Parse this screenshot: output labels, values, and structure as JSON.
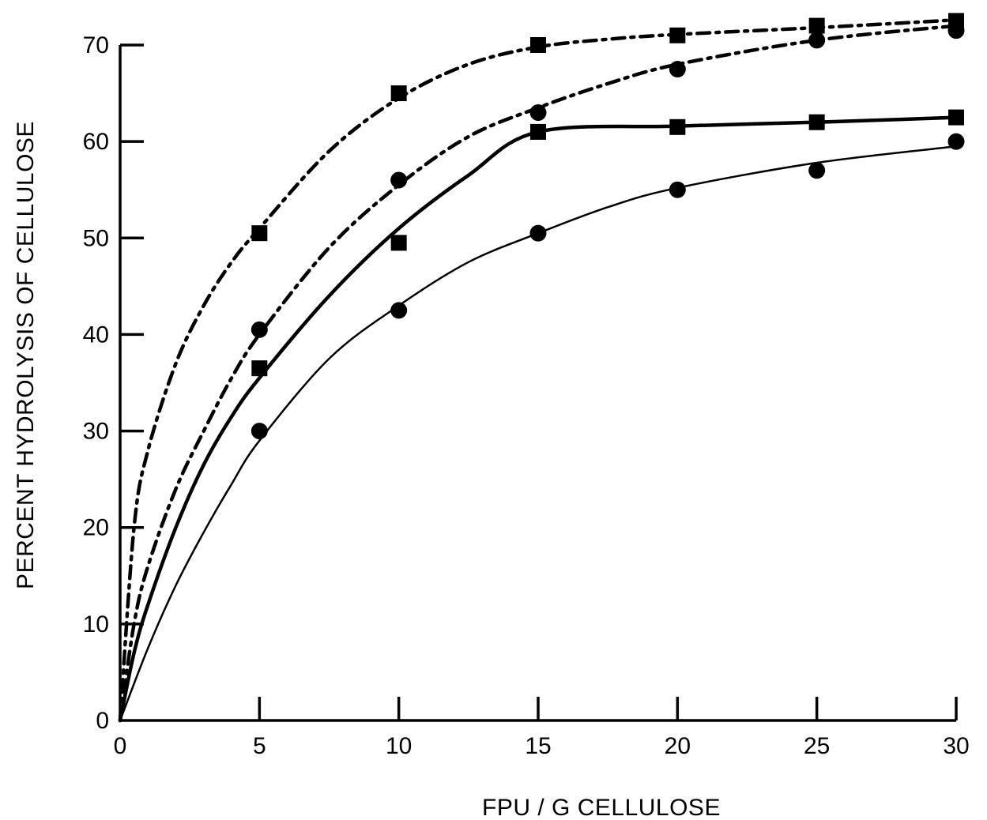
{
  "chart_data": {
    "type": "line",
    "title": "",
    "xlabel": "FPU / G CELLULOSE",
    "ylabel": "PERCENT HYDROLYSIS OF CELLULOSE",
    "xlim": [
      0,
      30
    ],
    "ylim": [
      0,
      70
    ],
    "x_ticks": [
      0,
      5,
      10,
      15,
      20,
      25,
      30
    ],
    "y_ticks": [
      0,
      10,
      20,
      30,
      40,
      50,
      60,
      70
    ],
    "grid": false,
    "legend": "none",
    "series": [
      {
        "marker": "square",
        "line_style": "dash-dot",
        "points": [
          [
            0,
            0
          ],
          [
            5,
            50.5
          ],
          [
            10,
            65
          ],
          [
            15,
            70
          ],
          [
            20,
            71
          ],
          [
            25,
            72
          ],
          [
            30,
            72.5
          ]
        ],
        "curve": [
          [
            0,
            0
          ],
          [
            0.5,
            20
          ],
          [
            1,
            28
          ],
          [
            2,
            37
          ],
          [
            3,
            43
          ],
          [
            4,
            47.5
          ],
          [
            5,
            51
          ],
          [
            7.5,
            59
          ],
          [
            10,
            64.5
          ],
          [
            12.5,
            68
          ],
          [
            15,
            69.8
          ],
          [
            17.5,
            70.6
          ],
          [
            20,
            71.1
          ],
          [
            25,
            71.8
          ],
          [
            30,
            72.6
          ]
        ]
      },
      {
        "marker": "circle",
        "line_style": "dash-dot",
        "points": [
          [
            0,
            0
          ],
          [
            5,
            40.5
          ],
          [
            10,
            56
          ],
          [
            15,
            63
          ],
          [
            20,
            67.5
          ],
          [
            25,
            70.5
          ],
          [
            30,
            71.5
          ]
        ],
        "curve": [
          [
            0,
            0
          ],
          [
            0.5,
            10
          ],
          [
            1,
            16
          ],
          [
            2,
            24
          ],
          [
            3,
            30
          ],
          [
            4,
            35.5
          ],
          [
            5,
            40
          ],
          [
            7.5,
            49
          ],
          [
            10,
            55.5
          ],
          [
            12.5,
            60.5
          ],
          [
            15,
            63.5
          ],
          [
            17.5,
            66
          ],
          [
            20,
            68
          ],
          [
            25,
            70.5
          ],
          [
            30,
            72
          ]
        ]
      },
      {
        "marker": "square",
        "line_style": "solid-thick",
        "points": [
          [
            0,
            0
          ],
          [
            5,
            36.5
          ],
          [
            10,
            49.5
          ],
          [
            15,
            61
          ],
          [
            20,
            61.5
          ],
          [
            25,
            62
          ],
          [
            30,
            62.5
          ]
        ],
        "curve": [
          [
            0,
            0
          ],
          [
            0.5,
            7
          ],
          [
            1,
            12
          ],
          [
            2,
            20
          ],
          [
            3,
            26.5
          ],
          [
            4,
            31.5
          ],
          [
            5,
            35.5
          ],
          [
            7.5,
            44
          ],
          [
            10,
            51
          ],
          [
            12.5,
            56.5
          ],
          [
            15,
            61
          ],
          [
            20,
            61.6
          ],
          [
            25,
            62
          ],
          [
            30,
            62.5
          ]
        ]
      },
      {
        "marker": "circle",
        "line_style": "solid-thin",
        "points": [
          [
            0,
            0
          ],
          [
            5,
            30
          ],
          [
            10,
            42.5
          ],
          [
            15,
            50.5
          ],
          [
            20,
            55
          ],
          [
            25,
            57
          ],
          [
            30,
            60
          ]
        ],
        "curve": [
          [
            0,
            0
          ],
          [
            1,
            7.5
          ],
          [
            2,
            14
          ],
          [
            3,
            19.5
          ],
          [
            4,
            24.5
          ],
          [
            5,
            29
          ],
          [
            7.5,
            37.5
          ],
          [
            10,
            43
          ],
          [
            12.5,
            47.5
          ],
          [
            15,
            50.5
          ],
          [
            17.5,
            53.2
          ],
          [
            20,
            55.2
          ],
          [
            25,
            57.8
          ],
          [
            30,
            59.5
          ]
        ]
      }
    ]
  }
}
